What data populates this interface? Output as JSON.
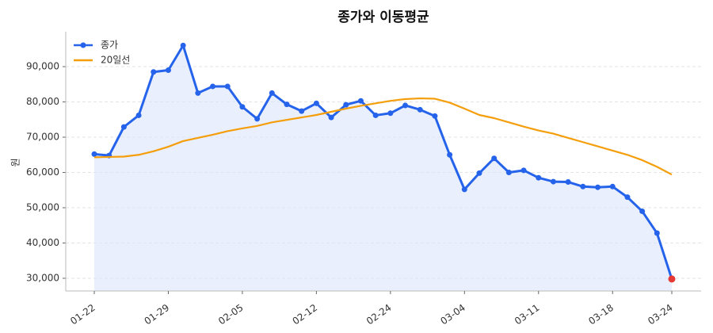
{
  "chart_data": {
    "type": "line",
    "title": "종가와 이동평균",
    "y_label": "원",
    "categories": [
      "01-22",
      null,
      null,
      null,
      null,
      "01-29",
      null,
      null,
      null,
      null,
      "02-05",
      null,
      null,
      null,
      null,
      "02-12",
      null,
      null,
      null,
      null,
      "02-24",
      null,
      null,
      null,
      null,
      "03-04",
      null,
      null,
      null,
      null,
      "03-11",
      null,
      null,
      null,
      null,
      "03-18",
      null,
      null,
      null,
      "03-24"
    ],
    "series": [
      {
        "name": "종가",
        "color": "#2563eb",
        "area_color": "#dbe5fb",
        "last_point_color": "#e53935",
        "values": [
          65200,
          64800,
          72900,
          76200,
          88500,
          89000,
          96000,
          82500,
          84400,
          84400,
          78600,
          75200,
          82500,
          79300,
          77400,
          79600,
          75600,
          79200,
          80300,
          76200,
          76800,
          79000,
          77800,
          76000,
          65000,
          55200,
          59800,
          64000,
          60000,
          60600,
          58500,
          57400,
          57300,
          56000,
          55800,
          56000,
          53000,
          49000,
          42800,
          29800
        ]
      },
      {
        "name": "20일선",
        "color": "#f59e0b",
        "values": [
          64300,
          64400,
          64500,
          65000,
          66000,
          67300,
          68900,
          69800,
          70700,
          71700,
          72500,
          73200,
          74200,
          74900,
          75600,
          76300,
          77200,
          78100,
          78900,
          79600,
          80300,
          80800,
          81000,
          80900,
          79800,
          78100,
          76300,
          75400,
          74200,
          73000,
          71900,
          71000,
          69800,
          68600,
          67400,
          66200,
          65000,
          63500,
          61600,
          59400
        ]
      }
    ],
    "ylim": [
      26400,
      99900
    ],
    "yticks": [
      {
        "value": 30000,
        "label": "30,000"
      },
      {
        "value": 40000,
        "label": "40,000"
      },
      {
        "value": 50000,
        "label": "50,000"
      },
      {
        "value": 60000,
        "label": "60,000"
      },
      {
        "value": 70000,
        "label": "70,000"
      },
      {
        "value": 80000,
        "label": "80,000"
      },
      {
        "value": 90000,
        "label": "90,000"
      }
    ],
    "grid": true,
    "legend": "upper-left"
  }
}
